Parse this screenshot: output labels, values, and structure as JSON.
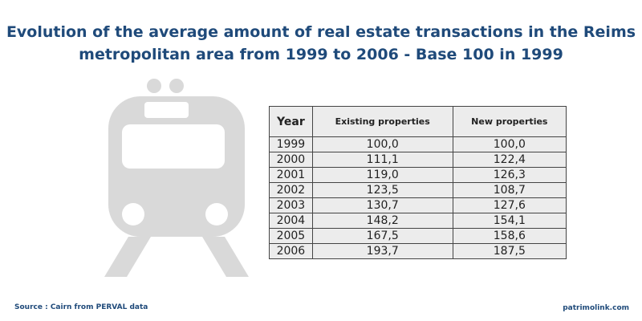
{
  "title": "Evolution of the average amount of real estate transactions in the Reims metropolitan area from 1999 to 2006 - Base 100 in 1999",
  "source": "Source : Cairn from PERVAL data",
  "brand": "patrimolink.com",
  "chart_data": {
    "type": "table",
    "columns": [
      "Year",
      "Existing properties",
      "New properties"
    ],
    "rows": [
      [
        "1999",
        "100,0",
        "100,0"
      ],
      [
        "2000",
        "111,1",
        "122,4"
      ],
      [
        "2001",
        "119,0",
        "126,3"
      ],
      [
        "2002",
        "123,5",
        "108,7"
      ],
      [
        "2003",
        "130,7",
        "127,6"
      ],
      [
        "2004",
        "148,2",
        "154,1"
      ],
      [
        "2005",
        "167,5",
        "158,6"
      ],
      [
        "2006",
        "193,7",
        "187,5"
      ]
    ]
  }
}
